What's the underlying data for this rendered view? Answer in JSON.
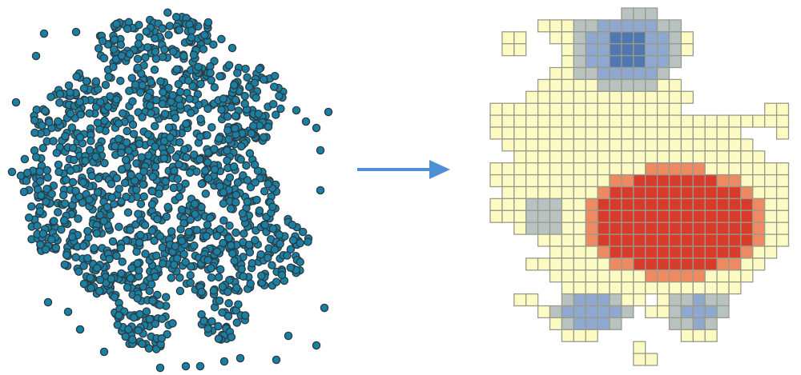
{
  "diagram": {
    "left_panel": {
      "kind": "point-cluster",
      "point_fill": "#1b7fa3",
      "point_stroke": "#2b3a40"
    },
    "arrow": {
      "color": "#4f8fd6",
      "direction": "right"
    },
    "right_panel": {
      "kind": "grid-cells",
      "cell_outline": "#9a9a8a",
      "palette": {
        "base": "#fdfbc4",
        "cool_light": "#b8c3c1",
        "cool": "#8ea8cf",
        "cool_dark": "#4f78b3",
        "hot": "#d93b2b",
        "warm": "#ee8a62"
      }
    }
  }
}
